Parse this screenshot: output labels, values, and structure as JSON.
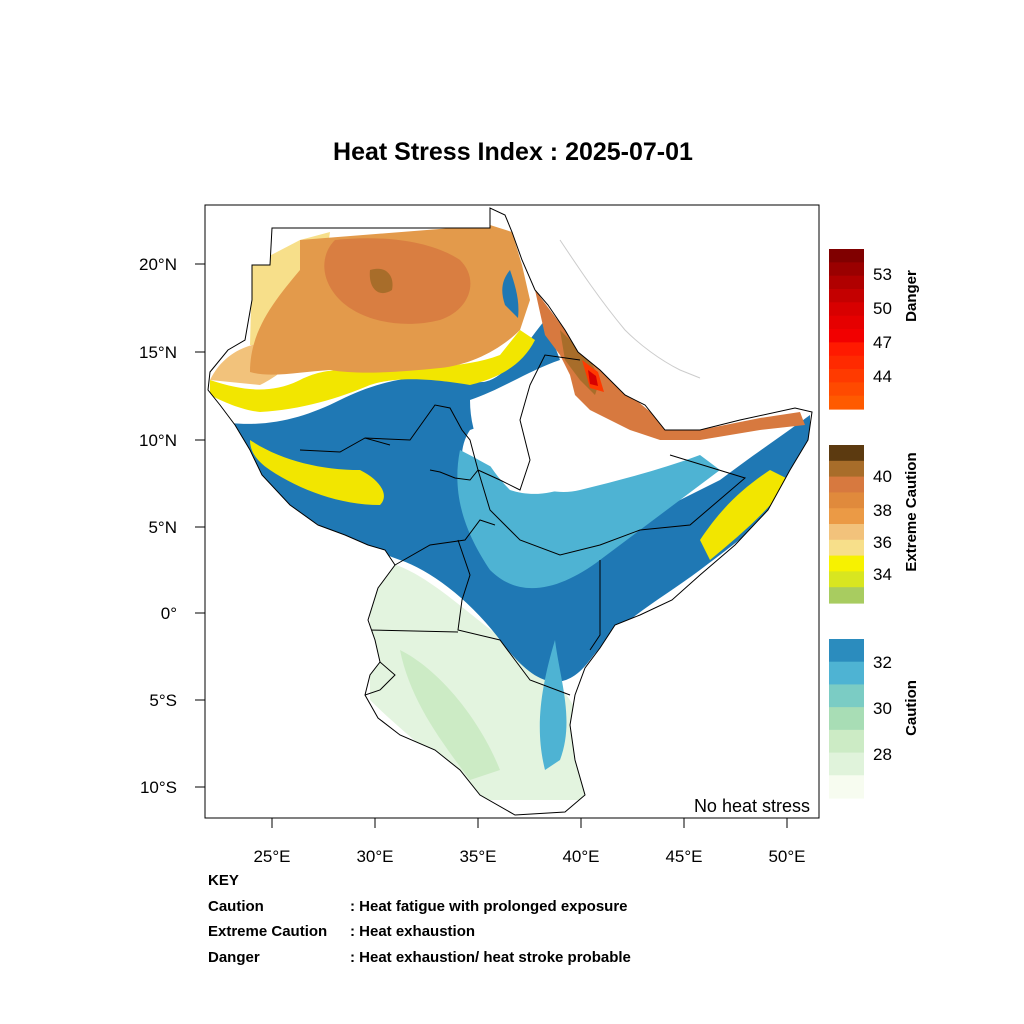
{
  "title": "Heat Stress Index : 2025-07-01",
  "map": {
    "lon_ticks": [
      "25°E",
      "30°E",
      "35°E",
      "40°E",
      "45°E",
      "50°E"
    ],
    "lat_ticks": [
      "20°N",
      "15°N",
      "10°N",
      "5°N",
      "0°",
      "5°S",
      "10°S"
    ],
    "no_stress_label": "No heat stress"
  },
  "colorbars": [
    {
      "name": "Danger",
      "labels": [
        "53",
        "50",
        "47",
        "44"
      ],
      "colors": [
        "#800000",
        "#9a0000",
        "#b00000",
        "#c40000",
        "#d80000",
        "#e60000",
        "#f20000",
        "#ff1a00",
        "#ff2a00",
        "#ff3a00",
        "#ff4a00",
        "#ff5a00"
      ]
    },
    {
      "name": "Extreme Caution",
      "labels": [
        "40",
        "38",
        "36",
        "34"
      ],
      "colors": [
        "#5c3a10",
        "#a86d2a",
        "#d7793f",
        "#e08a3c",
        "#eb9a45",
        "#f2c27b",
        "#f7df8a",
        "#f7f200",
        "#d8e620",
        "#a8cc60"
      ]
    },
    {
      "name": "Caution",
      "labels": [
        "32",
        "30",
        "28"
      ],
      "colors": [
        "#2b8cbe",
        "#4eb3d3",
        "#7bccc4",
        "#a8ddb5",
        "#ccebc5",
        "#e0f3db",
        "#f7fcf0"
      ]
    }
  ],
  "key": {
    "heading": "KEY",
    "rows": [
      {
        "term": "Caution",
        "desc": ": Heat fatigue with prolonged exposure"
      },
      {
        "term": "Extreme Caution",
        "desc": " : Heat exhaustion"
      },
      {
        "term": "Danger",
        "desc": ": Heat exhaustion/ heat stroke probable"
      }
    ]
  }
}
